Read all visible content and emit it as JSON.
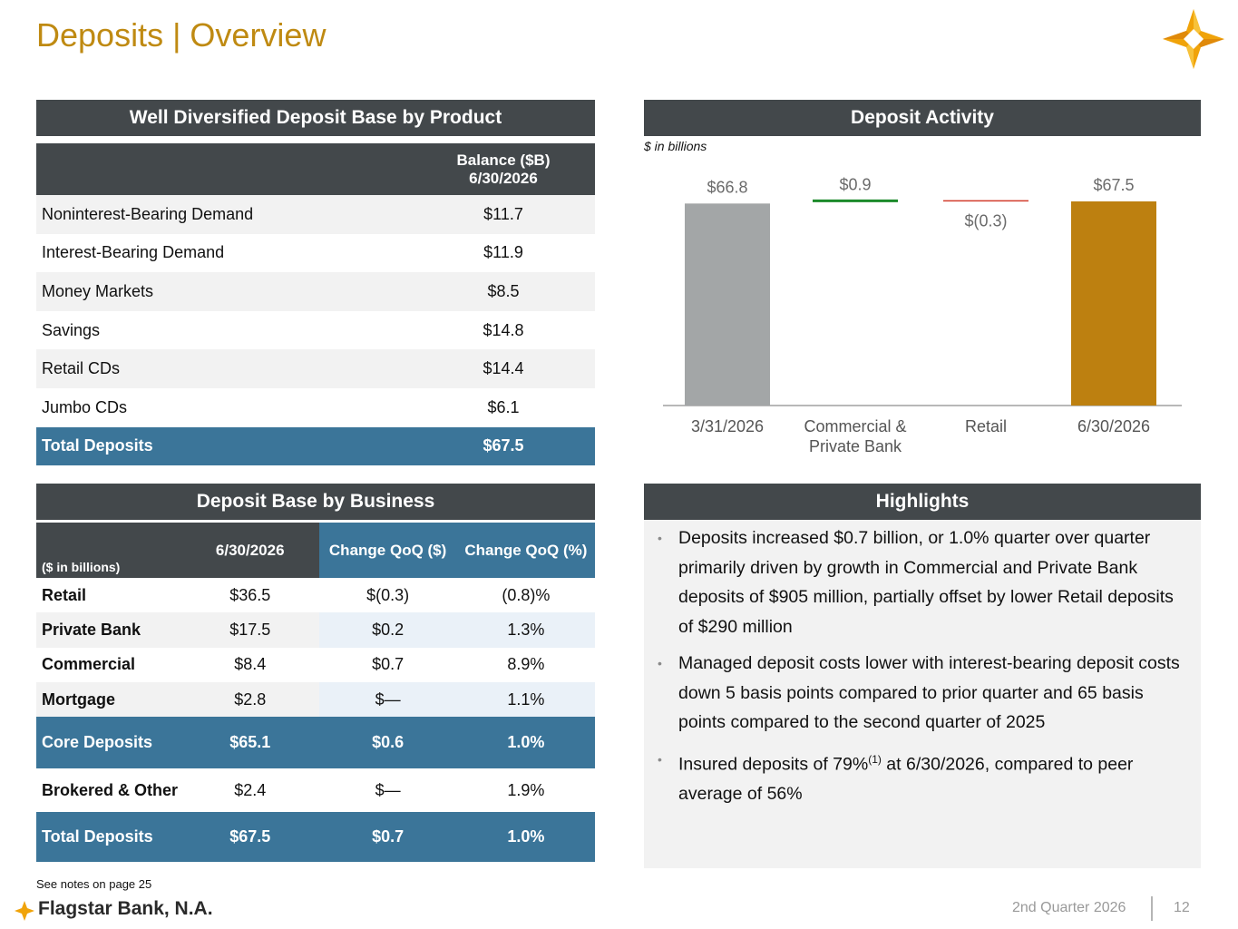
{
  "title": "Deposits | Overview",
  "product_section": {
    "header": "Well Diversified Deposit Base by Product",
    "col_header_line1": "Balance ($B)",
    "col_header_line2": "6/30/2026",
    "rows": [
      {
        "label": "Noninterest-Bearing Demand",
        "value": "$11.7"
      },
      {
        "label": "Interest-Bearing Demand",
        "value": "$11.9"
      },
      {
        "label": "Money Markets",
        "value": "$8.5"
      },
      {
        "label": "Savings",
        "value": "$14.8"
      },
      {
        "label": "Retail CDs",
        "value": "$14.4"
      },
      {
        "label": "Jumbo CDs",
        "value": "$6.1"
      }
    ],
    "total": {
      "label": "Total Deposits",
      "value": "$67.5"
    }
  },
  "activity_section": {
    "header": "Deposit Activity",
    "note": "$ in billions"
  },
  "chart_data": {
    "type": "bar",
    "subtype": "waterfall",
    "categories": [
      "3/31/2026",
      "Commercial & Private Bank",
      "Retail",
      "6/30/2026"
    ],
    "category_lines": [
      [
        "3/31/2026"
      ],
      [
        "Commercial &",
        "Private Bank"
      ],
      [
        "Retail"
      ],
      [
        "6/30/2026"
      ]
    ],
    "values": [
      66.8,
      0.9,
      -0.3,
      67.5
    ],
    "labels": [
      "$66.8",
      "$0.9",
      "$(0.3)",
      "$67.5"
    ],
    "colors": [
      "#a3a6a7",
      "#1b8a2a",
      "#d13a2a",
      "#bd8010"
    ],
    "ylim": [
      0,
      67.5
    ]
  },
  "business_section": {
    "header": "Deposit Base by Business",
    "units": "($ in billions)",
    "columns": [
      "6/30/2026",
      "Change QoQ ($)",
      "Change QoQ (%)"
    ],
    "rows": [
      {
        "name": "Retail",
        "balance": "$36.5",
        "chg": "$(0.3)",
        "pct": "(0.8)%"
      },
      {
        "name": "Private Bank",
        "balance": "$17.5",
        "chg": "$0.2",
        "pct": "1.3%"
      },
      {
        "name": "Commercial",
        "balance": "$8.4",
        "chg": "$0.7",
        "pct": "8.9%"
      },
      {
        "name": "Mortgage",
        "balance": "$2.8",
        "chg": "$—",
        "pct": "1.1%"
      }
    ],
    "core": {
      "name": "Core Deposits",
      "balance": "$65.1",
      "chg": "$0.6",
      "pct": "1.0%"
    },
    "brokered": {
      "name": "Brokered & Other",
      "balance": "$2.4",
      "chg": "$—",
      "pct": "1.9%"
    },
    "total": {
      "name": "Total Deposits",
      "balance": "$67.5",
      "chg": "$0.7",
      "pct": "1.0%"
    }
  },
  "highlights": {
    "header": "Highlights",
    "items": [
      "Deposits increased $0.7 billion, or 1.0% quarter over quarter primarily driven by growth in Commercial and Private Bank deposits of $905 million, partially offset by lower Retail deposits of $290 million",
      "Managed deposit costs lower with interest-bearing deposit costs down 5 basis points compared to prior quarter and 65 basis points compared to the second quarter of 2025"
    ],
    "item3_pre": "Insured deposits of 79%",
    "item3_sup": "(1)",
    "item3_post": " at 6/30/2026, compared to peer average of 56%"
  },
  "footer": {
    "note": "See notes on page 25",
    "brand": "Flagstar Bank, N.A.",
    "quarter": "2nd Quarter 2026",
    "page": "12"
  },
  "colors": {
    "gold": "#bf8a12",
    "header_gray": "#43484b",
    "table_blue": "#3b7599"
  },
  "icons": {
    "top_right": "flagstar-star-logo",
    "footer": "flagstar-star-logo"
  }
}
